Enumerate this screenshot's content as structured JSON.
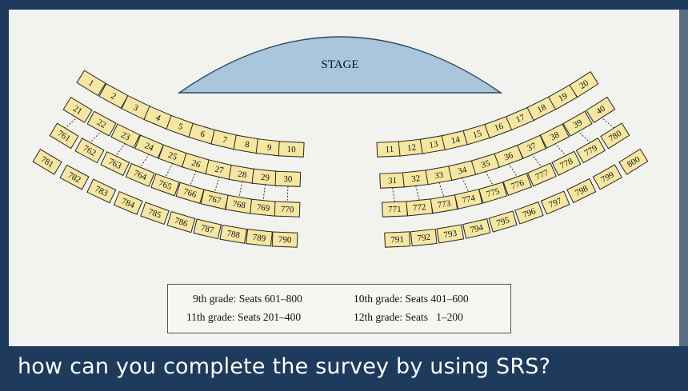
{
  "stage": {
    "label": "STAGE"
  },
  "seats": {
    "left_arc_1": [
      "1",
      "2",
      "3",
      "4",
      "5",
      "6",
      "7",
      "8",
      "9",
      "10"
    ],
    "left_arc_2": [
      "21",
      "22",
      "23",
      "24",
      "25",
      "26",
      "27",
      "28",
      "29",
      "30"
    ],
    "left_arc_3": [
      "761",
      "762",
      "763",
      "764",
      "765",
      "766",
      "767",
      "768",
      "769",
      "770"
    ],
    "left_arc_4": [
      "781",
      "782",
      "783",
      "784",
      "785",
      "786",
      "787",
      "788",
      "789",
      "790"
    ],
    "right_arc_1": [
      "11",
      "12",
      "13",
      "14",
      "15",
      "16",
      "17",
      "18",
      "19",
      "20"
    ],
    "right_arc_2": [
      "31",
      "32",
      "33",
      "34",
      "35",
      "36",
      "37",
      "38",
      "39",
      "40"
    ],
    "right_arc_3": [
      "771",
      "772",
      "773",
      "774",
      "775",
      "776",
      "777",
      "778",
      "779",
      "780"
    ],
    "right_arc_4": [
      "791",
      "792",
      "793",
      "794",
      "795",
      "796",
      "797",
      "798",
      "799",
      "800"
    ]
  },
  "legend": {
    "grade9": "9th grade: Seats 601–800",
    "grade10": "10th grade: Seats 401–600",
    "grade11": "11th grade: Seats 201–400",
    "grade12": "12th grade: Seats   1–200"
  },
  "caption": "how can you complete the survey by using SRS?",
  "colors": {
    "seat_fill": "#f6e7a0",
    "stage_fill": "#a9c6dd",
    "background": "#1e3a5c"
  }
}
